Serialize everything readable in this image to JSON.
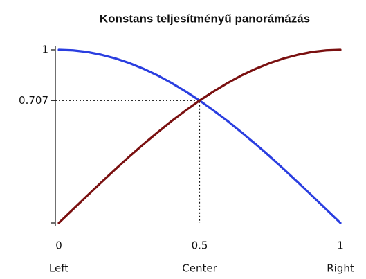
{
  "chart_data": {
    "type": "line",
    "title": "Konstans teljesítményű panorámázás",
    "x": [
      0,
      0.05,
      0.1,
      0.15,
      0.2,
      0.25,
      0.3,
      0.35,
      0.4,
      0.45,
      0.5,
      0.55,
      0.6,
      0.65,
      0.7,
      0.75,
      0.8,
      0.85,
      0.9,
      0.95,
      1
    ],
    "series": [
      {
        "color": "#2a3ee0",
        "values": [
          1,
          0.997,
          0.988,
          0.972,
          0.951,
          0.924,
          0.891,
          0.853,
          0.809,
          0.76,
          0.707,
          0.649,
          0.588,
          0.522,
          0.454,
          0.383,
          0.309,
          0.233,
          0.156,
          0.078,
          0
        ]
      },
      {
        "color": "#7a1010",
        "values": [
          0,
          0.078,
          0.156,
          0.233,
          0.309,
          0.383,
          0.454,
          0.522,
          0.588,
          0.649,
          0.707,
          0.76,
          0.809,
          0.853,
          0.891,
          0.924,
          0.951,
          0.972,
          0.988,
          0.997,
          1
        ]
      }
    ],
    "xlim": [
      0,
      1
    ],
    "ylim": [
      0,
      1
    ],
    "xticks": [
      0,
      0.5,
      1
    ],
    "xtick_sublabels": [
      "Left",
      "Center",
      "Right"
    ],
    "yticks": [
      {
        "value": 0,
        "label": null
      },
      0.707,
      1
    ],
    "crosshair": {
      "x": 0.5,
      "y": 0.707
    }
  }
}
